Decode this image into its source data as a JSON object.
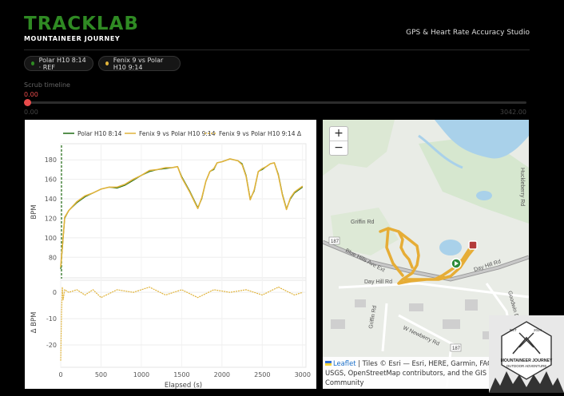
{
  "header": {
    "brand_title": "TRACKLAB",
    "brand_sub": "MOUNTAINEER JOURNEY",
    "studio_title": "GPS & Heart Rate Accuracy Studio"
  },
  "chips": [
    {
      "label": "Polar H10 8:14 · REF",
      "color": "#2e8b22"
    },
    {
      "label": "Fenix 9 vs Polar H10 9:14",
      "color": "#e0b33a"
    }
  ],
  "scrub": {
    "label": "Scrub timeline",
    "value": "0.00",
    "min": "0.00",
    "max": "3042.00"
  },
  "chart_data": [
    {
      "type": "line",
      "ylabel": "BPM",
      "xlim": [
        0,
        3042
      ],
      "ylim": [
        63,
        190
      ],
      "yticks": [
        80,
        100,
        120,
        140,
        160,
        180
      ],
      "legend_position": "top-right",
      "grid": true,
      "series": [
        {
          "name": "Polar H10 8:14",
          "color": "#1e6b12",
          "x": [
            0,
            50,
            100,
            200,
            300,
            400,
            500,
            600,
            700,
            800,
            900,
            1000,
            1100,
            1200,
            1300,
            1380,
            1450,
            1500,
            1600,
            1700,
            1750,
            1800,
            1850,
            1900,
            1940,
            2000,
            2100,
            2200,
            2250,
            2300,
            2350,
            2400,
            2450,
            2500,
            2550,
            2600,
            2650,
            2700,
            2750,
            2800,
            2850,
            2900,
            3000
          ],
          "y": [
            68,
            120,
            128,
            136,
            142,
            146,
            150,
            152,
            151,
            154,
            159,
            164,
            168,
            170,
            171,
            172,
            173,
            163,
            148,
            131,
            140,
            158,
            168,
            170,
            177,
            178,
            181,
            179,
            176,
            164,
            140,
            148,
            168,
            170,
            173,
            176,
            177,
            165,
            145,
            130,
            140,
            146,
            152
          ]
        },
        {
          "name": "Fenix 9 vs Polar H10 9:14",
          "color": "#e0b33a",
          "x": [
            0,
            50,
            100,
            200,
            300,
            400,
            500,
            600,
            700,
            800,
            900,
            1000,
            1100,
            1200,
            1300,
            1380,
            1450,
            1500,
            1600,
            1700,
            1750,
            1800,
            1850,
            1900,
            1940,
            2000,
            2100,
            2200,
            2250,
            2300,
            2350,
            2400,
            2450,
            2500,
            2550,
            2600,
            2650,
            2700,
            2750,
            2800,
            2850,
            2900,
            3000
          ],
          "y": [
            70,
            121,
            128,
            137,
            143,
            146,
            150,
            152,
            152,
            155,
            160,
            164,
            169,
            170,
            172,
            172,
            173,
            162,
            147,
            130,
            141,
            158,
            168,
            171,
            177,
            178,
            181,
            179,
            175,
            163,
            139,
            149,
            168,
            171,
            173,
            176,
            177,
            164,
            144,
            129,
            141,
            147,
            153
          ]
        }
      ]
    },
    {
      "type": "line",
      "xlabel": "Elapsed (s)",
      "ylabel": "Δ BPM",
      "xlim": [
        0,
        3042
      ],
      "ylim": [
        -27,
        4
      ],
      "yticks": [
        0,
        -10,
        -20
      ],
      "xticks": [
        0,
        500,
        1000,
        1500,
        2000,
        2500,
        3000
      ],
      "grid": true,
      "series": [
        {
          "name": "Fenix 9 vs Polar H10 9:14 Δ",
          "color": "#e0b33a",
          "dashed": true,
          "x": [
            0,
            10,
            20,
            30,
            50,
            100,
            200,
            300,
            400,
            500,
            700,
            900,
            1100,
            1300,
            1500,
            1700,
            1900,
            2100,
            2300,
            2500,
            2700,
            2900,
            3000
          ],
          "y": [
            -26,
            -8,
            2,
            -3,
            1,
            0,
            1,
            -1,
            1,
            -2,
            1,
            0,
            2,
            -1,
            1,
            -2,
            1,
            0,
            1,
            -1,
            2,
            -1,
            0
          ]
        }
      ]
    }
  ],
  "map": {
    "zoom_in": "+",
    "zoom_out": "−",
    "labels": [
      "Griffin Rd",
      "Blue Hills Ave Ext",
      "Day Hill Rd",
      "Day Hill Rd",
      "Griffin Rd",
      "W Newberry Rd",
      "Goodwin Dr",
      "Huckleberry Rd",
      "187",
      "187"
    ],
    "attribution_link": "Leaflet",
    "attribution_text": " | Tiles © Esri — Esri, HERE, Garmin, FAO, NOAA, USGS, OpenStreetMap contributors, and the GIS User Community",
    "route_color": "#e6ad36",
    "start_color": "#2e8b3a",
    "end_color": "#b33a3a"
  },
  "badge": {
    "line1": "MOUNTAINEER JOURNEY",
    "line2": "OUTDOOR ADVENTURE",
    "est": "EST",
    "year": "2024"
  }
}
